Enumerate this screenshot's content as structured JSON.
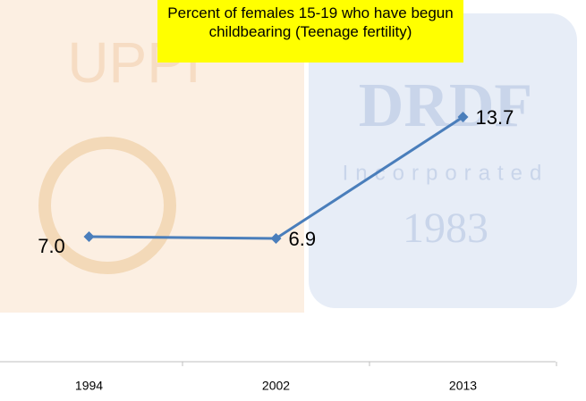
{
  "chart_data": {
    "type": "line",
    "title": "Percent of females 15-19 who have begun childbearing (Teenage fertility)",
    "background_texts": [
      "UPPI",
      "DRDF",
      "Incorporated",
      "1983"
    ],
    "categories": [
      "1994",
      "2002",
      "2013"
    ],
    "values": [
      7.0,
      6.9,
      13.7
    ],
    "value_labels": [
      "7.0",
      "6.9",
      "13.7"
    ],
    "color": "#4a7ebb",
    "ylim": [
      0,
      20
    ]
  }
}
